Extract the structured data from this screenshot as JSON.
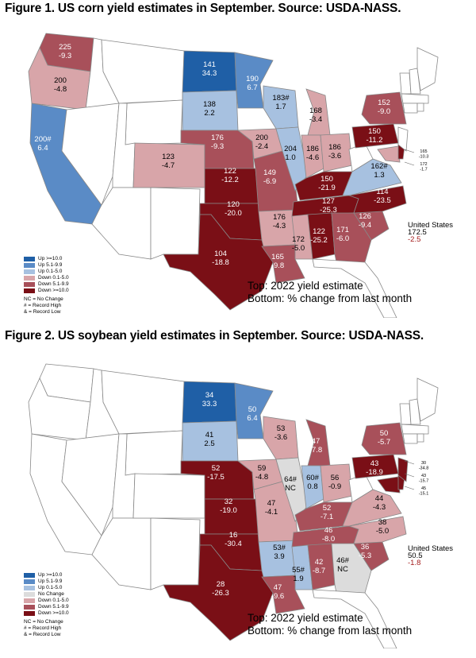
{
  "figure1": {
    "title": "Figure 1. US corn yield estimates in September. Source: USDA-NASS.",
    "caption_top": "Top: 2022 yield estimate",
    "caption_bottom": "Bottom: % change from last month",
    "us_label": "United States",
    "us_value": "172.5",
    "us_change": "-2.5",
    "legend": [
      {
        "label": "Up >=10.0",
        "color": "#1f5fa6"
      },
      {
        "label": "Up 5.1-9.9",
        "color": "#5a8bc6"
      },
      {
        "label": "Up 0.1-5.0",
        "color": "#a7c1e0"
      },
      {
        "label": "Down 0.1-5.0",
        "color": "#d8a5a9"
      },
      {
        "label": "Down 5.1-9.9",
        "color": "#a8505a"
      },
      {
        "label": "Down >=10.0",
        "color": "#7a0f16"
      }
    ],
    "notes": [
      "NC = No Change",
      "# = Record High",
      "& = Record Low"
    ],
    "states": [
      {
        "id": "WA",
        "top": "225",
        "bottom": "-9.3",
        "color": "#a8505a"
      },
      {
        "id": "OR",
        "top": "200",
        "bottom": "-4.8",
        "color": "#d8a5a9"
      },
      {
        "id": "CA",
        "top": "200#",
        "bottom": "6.4",
        "color": "#5a8bc6"
      },
      {
        "id": "ND",
        "top": "141",
        "bottom": "34.3",
        "color": "#1f5fa6"
      },
      {
        "id": "SD",
        "top": "138",
        "bottom": "2.2",
        "color": "#a7c1e0"
      },
      {
        "id": "MN",
        "top": "190",
        "bottom": "6.7",
        "color": "#5a8bc6"
      },
      {
        "id": "WI",
        "top": "183#",
        "bottom": "1.7",
        "color": "#a7c1e0"
      },
      {
        "id": "MI",
        "top": "168",
        "bottom": "-3.4",
        "color": "#d8a5a9"
      },
      {
        "id": "NY",
        "top": "152",
        "bottom": "-9.0",
        "color": "#a8505a"
      },
      {
        "id": "PA",
        "top": "150",
        "bottom": "-11.2",
        "color": "#7a0f16"
      },
      {
        "id": "NE",
        "top": "176",
        "bottom": "-9.3",
        "color": "#a8505a"
      },
      {
        "id": "IA",
        "top": "200",
        "bottom": "-2.4",
        "color": "#d8a5a9"
      },
      {
        "id": "IL",
        "top": "204",
        "bottom": "1.0",
        "color": "#a7c1e0"
      },
      {
        "id": "IN",
        "top": "186",
        "bottom": "-4.6",
        "color": "#d8a5a9"
      },
      {
        "id": "OH",
        "top": "186",
        "bottom": "-3.6",
        "color": "#d8a5a9"
      },
      {
        "id": "CO",
        "top": "123",
        "bottom": "-4.7",
        "color": "#d8a5a9"
      },
      {
        "id": "KS",
        "top": "122",
        "bottom": "-12.2",
        "color": "#7a0f16"
      },
      {
        "id": "MO",
        "top": "149",
        "bottom": "-6.9",
        "color": "#a8505a"
      },
      {
        "id": "KY",
        "top": "150",
        "bottom": "-21.9",
        "color": "#7a0f16"
      },
      {
        "id": "VA",
        "top": "162#",
        "bottom": "1.3",
        "color": "#a7c1e0"
      },
      {
        "id": "OK",
        "top": "120",
        "bottom": "-20.0",
        "color": "#7a0f16"
      },
      {
        "id": "AR",
        "top": "176",
        "bottom": "-4.3",
        "color": "#d8a5a9"
      },
      {
        "id": "TN",
        "top": "127",
        "bottom": "-25.3",
        "color": "#7a0f16"
      },
      {
        "id": "NC",
        "top": "114",
        "bottom": "-23.5",
        "color": "#7a0f16"
      },
      {
        "id": "SC",
        "top": "126",
        "bottom": "-9.4",
        "color": "#a8505a"
      },
      {
        "id": "GA",
        "top": "171",
        "bottom": "-6.0",
        "color": "#a8505a"
      },
      {
        "id": "AL",
        "top": "122",
        "bottom": "-25.2",
        "color": "#7a0f16"
      },
      {
        "id": "MS",
        "top": "172",
        "bottom": "-5.0",
        "color": "#d8a5a9"
      },
      {
        "id": "LA",
        "top": "165",
        "bottom": "-9.8",
        "color": "#a8505a"
      },
      {
        "id": "TX",
        "top": "104",
        "bottom": "-18.8",
        "color": "#7a0f16"
      },
      {
        "id": "DE",
        "top": "165",
        "bottom": "-10.3",
        "color": "#7a0f16"
      },
      {
        "id": "MD",
        "top": "172",
        "bottom": "-1.7",
        "color": "#d8a5a9"
      }
    ]
  },
  "figure2": {
    "title": "Figure 2. US soybean yield estimates in September. Source: USDA-NASS.",
    "caption_top": "Top: 2022 yield estimate",
    "caption_bottom": "Bottom: % change from last month",
    "us_label": "United States",
    "us_value": "50.5",
    "us_change": "-1.8",
    "legend": [
      {
        "label": "Up >=10.0",
        "color": "#1f5fa6"
      },
      {
        "label": "Up 5.1-9.9",
        "color": "#5a8bc6"
      },
      {
        "label": "Up 0.1-5.0",
        "color": "#a7c1e0"
      },
      {
        "label": "No Change",
        "color": "#dcdcdc"
      },
      {
        "label": "Down 0.1-5.0",
        "color": "#d8a5a9"
      },
      {
        "label": "Down 5.1-9.9",
        "color": "#a8505a"
      },
      {
        "label": "Down >=10.0",
        "color": "#7a0f16"
      }
    ],
    "notes": [
      "NC = No Change",
      "# = Record High",
      "& = Record Low"
    ],
    "states": [
      {
        "id": "ND",
        "top": "34",
        "bottom": "33.3",
        "color": "#1f5fa6"
      },
      {
        "id": "SD",
        "top": "41",
        "bottom": "2.5",
        "color": "#a7c1e0"
      },
      {
        "id": "MN",
        "top": "50",
        "bottom": "6.4",
        "color": "#5a8bc6"
      },
      {
        "id": "WI",
        "top": "53",
        "bottom": "-3.6",
        "color": "#d8a5a9"
      },
      {
        "id": "MI",
        "top": "47",
        "bottom": "-7.8",
        "color": "#a8505a"
      },
      {
        "id": "NY",
        "top": "50",
        "bottom": "-5.7",
        "color": "#a8505a"
      },
      {
        "id": "PA",
        "top": "43",
        "bottom": "-18.9",
        "color": "#7a0f16"
      },
      {
        "id": "NE",
        "top": "52",
        "bottom": "-17.5",
        "color": "#7a0f16"
      },
      {
        "id": "IA",
        "top": "59",
        "bottom": "-4.8",
        "color": "#d8a5a9"
      },
      {
        "id": "IL",
        "top": "64#",
        "bottom": "NC",
        "color": "#dcdcdc"
      },
      {
        "id": "IN",
        "top": "60#",
        "bottom": "0.8",
        "color": "#a7c1e0"
      },
      {
        "id": "OH",
        "top": "56",
        "bottom": "-0.9",
        "color": "#d8a5a9"
      },
      {
        "id": "KS",
        "top": "32",
        "bottom": "-19.0",
        "color": "#7a0f16"
      },
      {
        "id": "MO",
        "top": "47",
        "bottom": "-4.1",
        "color": "#d8a5a9"
      },
      {
        "id": "KY",
        "top": "52",
        "bottom": "-7.1",
        "color": "#a8505a"
      },
      {
        "id": "VA",
        "top": "44",
        "bottom": "-4.3",
        "color": "#d8a5a9"
      },
      {
        "id": "OK",
        "top": "16",
        "bottom": "-30.4",
        "color": "#7a0f16"
      },
      {
        "id": "AR",
        "top": "53#",
        "bottom": "3.9",
        "color": "#a7c1e0"
      },
      {
        "id": "TN",
        "top": "46",
        "bottom": "-8.0",
        "color": "#a8505a"
      },
      {
        "id": "NC",
        "top": "38",
        "bottom": "-5.0",
        "color": "#d8a5a9"
      },
      {
        "id": "SC",
        "top": "36",
        "bottom": "-5.3",
        "color": "#a8505a"
      },
      {
        "id": "GA",
        "top": "46#",
        "bottom": "NC",
        "color": "#dcdcdc"
      },
      {
        "id": "AL",
        "top": "42",
        "bottom": "-8.7",
        "color": "#a8505a"
      },
      {
        "id": "MS",
        "top": "55#",
        "bottom": "1.9",
        "color": "#a7c1e0"
      },
      {
        "id": "LA",
        "top": "47",
        "bottom": "-9.6",
        "color": "#a8505a"
      },
      {
        "id": "TX",
        "top": "28",
        "bottom": "-26.3",
        "color": "#7a0f16"
      },
      {
        "id": "NJ",
        "top": "30",
        "bottom": "-34.8",
        "color": "#7a0f16"
      },
      {
        "id": "DE",
        "top": "43",
        "bottom": "-15.7",
        "color": "#7a0f16"
      },
      {
        "id": "MD",
        "top": "45",
        "bottom": "-15.1",
        "color": "#7a0f16"
      }
    ]
  }
}
